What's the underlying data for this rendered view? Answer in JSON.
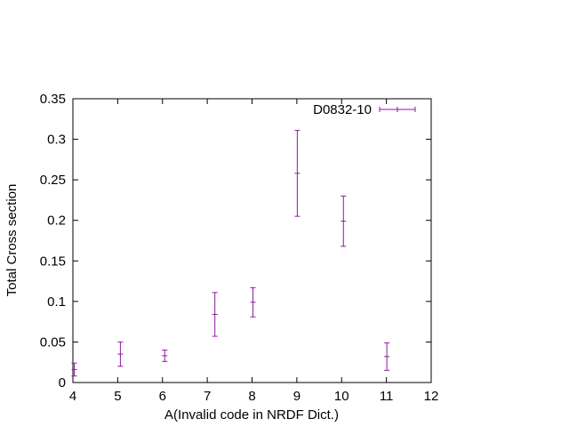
{
  "chart_data": {
    "type": "scatter",
    "title": "",
    "xlabel": "A(Invalid code in NRDF Dict.)",
    "ylabel": "Total Cross section",
    "xlim": [
      4,
      12
    ],
    "ylim": [
      0,
      0.35
    ],
    "xticks": [
      4,
      5,
      6,
      7,
      8,
      9,
      10,
      11,
      12
    ],
    "yticks": [
      0,
      0.05,
      0.1,
      0.15,
      0.2,
      0.25,
      0.3,
      0.35
    ],
    "xtick_labels": [
      "4",
      "5",
      "6",
      "7",
      "8",
      "9",
      "10",
      "11",
      "12"
    ],
    "ytick_labels": [
      "0",
      "0.05",
      "0.1",
      "0.15",
      "0.2",
      "0.25",
      "0.3",
      "0.35"
    ],
    "grid": false,
    "legend_position": "top-right",
    "series": [
      {
        "name": "D0832-10",
        "color": "#8b1a9e",
        "style": "errorbars",
        "points": [
          {
            "x": 4.03,
            "y": 0.016,
            "err": 0.008
          },
          {
            "x": 5.06,
            "y": 0.035,
            "err": 0.015
          },
          {
            "x": 6.05,
            "y": 0.033,
            "err": 0.007
          },
          {
            "x": 7.17,
            "y": 0.084,
            "err": 0.027
          },
          {
            "x": 8.02,
            "y": 0.099,
            "err": 0.018
          },
          {
            "x": 9.01,
            "y": 0.258,
            "err": 0.053
          },
          {
            "x": 10.04,
            "y": 0.199,
            "err": 0.031
          },
          {
            "x": 11.01,
            "y": 0.032,
            "err": 0.017
          }
        ]
      }
    ]
  }
}
